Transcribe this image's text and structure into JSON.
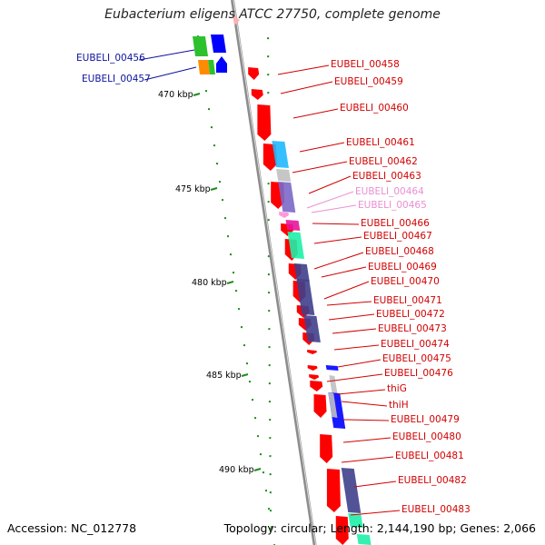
{
  "title": "Eubacterium eligens ATCC 27750, complete genome",
  "footer": {
    "accession": "Accession: NC_012778",
    "summary": "Topology: circular; Length: 2,144,190 bp; Genes: 2,066"
  },
  "colors": {
    "background": "#ffffff",
    "backbone": "#8c8c8c",
    "tick_mark": "#1f8c1f",
    "label_blue": "#0d129c",
    "label_red": "#d20000",
    "label_pink": "#e98fd2",
    "gene_red": "#ff0000",
    "gene_blue": "#0000ff",
    "gene_green": "#2ec12e",
    "gene_orange": "#ff8c00",
    "gene_cyan": "#1fb8ff",
    "gene_gray": "#c0c0c0",
    "gene_purple": "#7b68c8",
    "gene_navy": "#3f3f8c",
    "gene_magenta": "#e8149b",
    "gene_teal": "#1ff0a8",
    "gene_pink": "#ff99dd"
  },
  "ticks": [
    "470 kbp",
    "475 kbp",
    "480 kbp",
    "485 kbp",
    "490 kbp"
  ],
  "labels": [
    {
      "text": "EUBELI_00456",
      "color": "blue"
    },
    {
      "text": "EUBELI_00457",
      "color": "blue"
    },
    {
      "text": "EUBELI_00458",
      "color": "red"
    },
    {
      "text": "EUBELI_00459",
      "color": "red"
    },
    {
      "text": "EUBELI_00460",
      "color": "red"
    },
    {
      "text": "EUBELI_00461",
      "color": "red"
    },
    {
      "text": "EUBELI_00462",
      "color": "red"
    },
    {
      "text": "EUBELI_00463",
      "color": "red"
    },
    {
      "text": "EUBELI_00464",
      "color": "pink"
    },
    {
      "text": "EUBELI_00465",
      "color": "pink"
    },
    {
      "text": "EUBELI_00466",
      "color": "red"
    },
    {
      "text": "EUBELI_00467",
      "color": "red"
    },
    {
      "text": "EUBELI_00468",
      "color": "red"
    },
    {
      "text": "EUBELI_00469",
      "color": "red"
    },
    {
      "text": "EUBELI_00470",
      "color": "red"
    },
    {
      "text": "EUBELI_00471",
      "color": "red"
    },
    {
      "text": "EUBELI_00472",
      "color": "red"
    },
    {
      "text": "EUBELI_00473",
      "color": "red"
    },
    {
      "text": "EUBELI_00474",
      "color": "red"
    },
    {
      "text": "EUBELI_00475",
      "color": "red"
    },
    {
      "text": "EUBELI_00476",
      "color": "red"
    },
    {
      "text": "thiG",
      "color": "red"
    },
    {
      "text": "thiH",
      "color": "red"
    },
    {
      "text": "EUBELI_00479",
      "color": "red"
    },
    {
      "text": "EUBELI_00480",
      "color": "red"
    },
    {
      "text": "EUBELI_00481",
      "color": "red"
    },
    {
      "text": "EUBELI_00482",
      "color": "red"
    },
    {
      "text": "EUBELI_00483",
      "color": "red"
    }
  ]
}
